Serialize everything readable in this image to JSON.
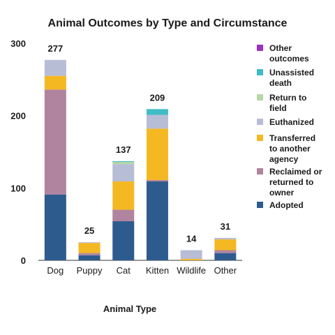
{
  "chart_data": {
    "type": "bar",
    "stacked": true,
    "title": "Animal Outcomes by Type and Circumstance",
    "xlabel": "Animal Type",
    "ylabel": "",
    "ylim": [
      0,
      300
    ],
    "yticks": [
      0,
      100,
      200,
      300
    ],
    "grid": false,
    "legend_position": "right",
    "categories": [
      "Dog",
      "Puppy",
      "Cat",
      "Kitten",
      "Wildlife",
      "Other"
    ],
    "totals": [
      277,
      25,
      137,
      209,
      14,
      31
    ],
    "series": [
      {
        "name": "Adopted",
        "color": "#2e5b8e",
        "values": [
          91,
          7,
          54,
          109,
          0,
          10
        ]
      },
      {
        "name": "Reclaimed or returned to owner",
        "color": "#b0849e",
        "values": [
          145,
          3,
          16,
          2,
          0,
          4
        ]
      },
      {
        "name": "Transferred to another agency",
        "color": "#f4b823",
        "values": [
          19,
          14,
          39,
          71,
          2,
          15
        ]
      },
      {
        "name": "Euthanized",
        "color": "#b8bdd6",
        "values": [
          22,
          1,
          24,
          19,
          12,
          2
        ]
      },
      {
        "name": "Return to field",
        "color": "#b6d7a8",
        "values": [
          0,
          0,
          3,
          0,
          0,
          0
        ]
      },
      {
        "name": "Unassisted death",
        "color": "#3fbcc6",
        "values": [
          0,
          0,
          1,
          8,
          0,
          0
        ]
      },
      {
        "name": "Other outcomes",
        "color": "#9b30c4",
        "values": [
          0,
          0,
          0,
          0,
          0,
          0
        ]
      }
    ],
    "legend": [
      {
        "lines": [
          "Other",
          "outcomes"
        ],
        "color": "#9b30c4"
      },
      {
        "lines": [
          "Unassisted",
          "death"
        ],
        "color": "#3fbcc6"
      },
      {
        "lines": [
          "Return to",
          "field"
        ],
        "color": "#b6d7a8"
      },
      {
        "lines": [
          "Euthanized"
        ],
        "color": "#b8bdd6"
      },
      {
        "lines": [
          "Transferred",
          "to another",
          "agency"
        ],
        "color": "#f4b823"
      },
      {
        "lines": [
          "Reclaimed or",
          "returned to",
          "owner"
        ],
        "color": "#b0849e"
      },
      {
        "lines": [
          "Adopted"
        ],
        "color": "#2e5b8e"
      }
    ]
  }
}
